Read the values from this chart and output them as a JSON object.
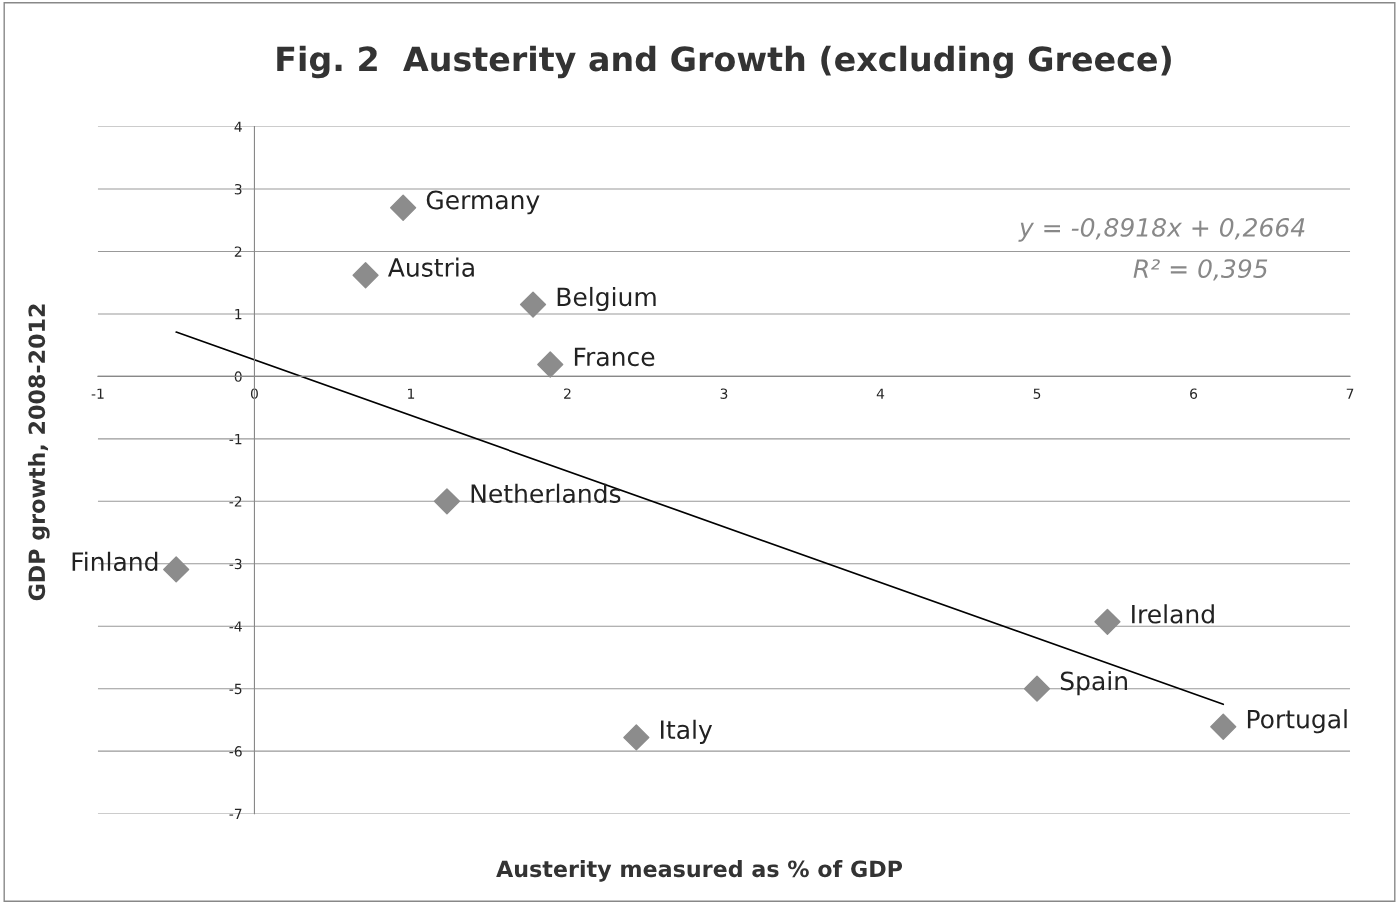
{
  "chart_data": {
    "type": "scatter",
    "title": "Fig. 2  Austerity and Growth (excluding Greece)",
    "xlabel": "Austerity measured as % of GDP",
    "ylabel": "GDP growth, 2008-2012",
    "xlim": [
      -1,
      7
    ],
    "ylim": [
      -7,
      4
    ],
    "xticks": [
      -1,
      0,
      1,
      2,
      3,
      4,
      5,
      6,
      7
    ],
    "yticks": [
      -7,
      -6,
      -5,
      -4,
      -3,
      -2,
      -1,
      0,
      1,
      2,
      3,
      4
    ],
    "grid": "y",
    "marker": "diamond",
    "legend": false,
    "series": [
      {
        "color": "#8c8c8c",
        "x": [
          0.95,
          0.71,
          1.78,
          1.89,
          1.23,
          -0.5,
          5.45,
          5.0,
          2.44,
          6.19
        ],
        "values": [
          2.7,
          1.62,
          1.15,
          0.19,
          -2.0,
          -3.09,
          -3.93,
          -5.0,
          -5.78,
          -5.61
        ]
      },
      {
        "type": "line",
        "marker": "none",
        "color": "#000000",
        "x": [
          -0.5,
          6.19
        ],
        "values": [
          0.71,
          -5.25
        ]
      }
    ],
    "annotations": [
      {
        "text": "Germany",
        "x": 0.95,
        "y": 2.7
      },
      {
        "text": "Austria",
        "x": 0.71,
        "y": 1.62
      },
      {
        "text": "Belgium",
        "x": 1.78,
        "y": 1.15
      },
      {
        "text": "France",
        "x": 1.89,
        "y": 0.19
      },
      {
        "text": "Netherlands",
        "x": 1.23,
        "y": -2.0
      },
      {
        "text": "Finland",
        "x": -0.5,
        "y": -3.09
      },
      {
        "text": "Ireland",
        "x": 5.45,
        "y": -3.93
      },
      {
        "text": "Spain",
        "x": 5.0,
        "y": -5.0
      },
      {
        "text": "Italy",
        "x": 2.44,
        "y": -5.78
      },
      {
        "text": "Portugal",
        "x": 6.19,
        "y": -5.61
      },
      "y = -0,8918x + 0,2664",
      "R² = 0,395"
    ]
  }
}
